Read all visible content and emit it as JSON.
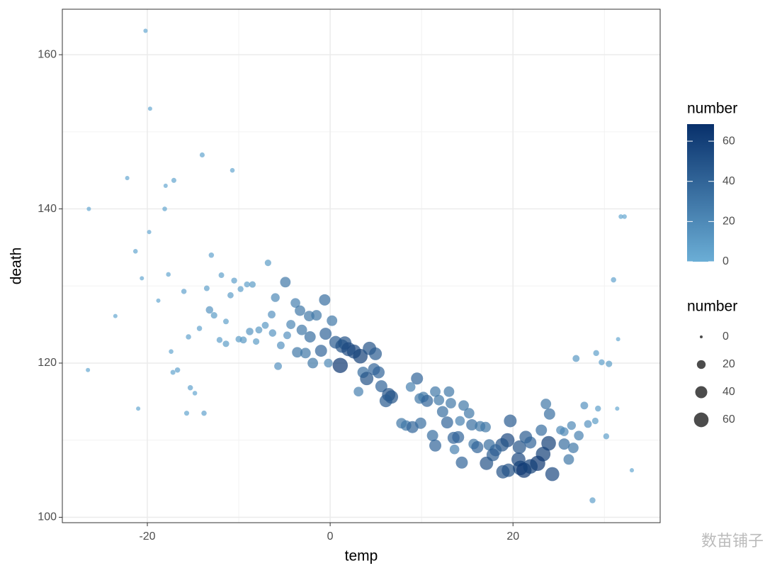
{
  "chart_data": {
    "type": "scatter",
    "x_label": "temp",
    "y_label": "death",
    "xlim": [
      -29.3,
      36.1
    ],
    "ylim": [
      99.3,
      165.9
    ],
    "xticks": [
      -20,
      0,
      20
    ],
    "yticks": [
      100,
      120,
      140,
      160
    ],
    "x_minor_ticks": [
      -10,
      10,
      30
    ],
    "y_minor_ticks": [
      110,
      130,
      150
    ],
    "grid": true,
    "color_low": "#6baed6",
    "color_high": "#08306b",
    "opacity": 0.7,
    "number_range": [
      0,
      68.5
    ],
    "color_legend_title": "number",
    "color_legend_ticks": [
      0,
      20,
      40,
      60
    ],
    "size_legend_title": "number",
    "size_legend_ticks": [
      0,
      20,
      40,
      60
    ],
    "watermark": "数苗铺子",
    "x": [
      -20.2,
      -19.7,
      -14.0,
      -10.7,
      -22.2,
      -17.1,
      -18.0,
      -26.4,
      -18.1,
      -19.8,
      -21.3,
      -13.0,
      -6.8,
      -20.6,
      -17.7,
      -11.9,
      -10.5,
      -8.5,
      -9.1,
      -13.5,
      -4.9,
      -9.8,
      -10.9,
      -16.0,
      -6.0,
      -18.8,
      -3.8,
      -13.2,
      -3.3,
      -0.6,
      -12.7,
      -23.5,
      -6.4,
      -2.3,
      -1.5,
      -11.4,
      0.2,
      -7.1,
      -4.3,
      -8.8,
      -7.8,
      -3.1,
      -14.3,
      -6.3,
      -0.5,
      -4.7,
      -15.5,
      -2.2,
      -10.0,
      -9.5,
      -12.1,
      -8.1,
      -11.4,
      0.6,
      1.6,
      1.3,
      -5.4,
      2.0,
      2.6,
      3.3,
      4.3,
      -17.4,
      -3.6,
      -2.7,
      -1.0,
      4.96,
      -1.9,
      -0.2,
      1.1,
      -5.7,
      4.8,
      5.3,
      3.6,
      4.0,
      9.5,
      -26.5,
      -16.7,
      -17.2,
      8.8,
      5.6,
      11.5,
      13.0,
      3.1,
      -15.3,
      -14.8,
      6.4,
      6.7,
      9.8,
      10.2,
      10.6,
      11.9,
      6.1,
      13.2,
      14.6,
      -21.0,
      12.3,
      -15.7,
      -13.8,
      15.2,
      23.6,
      24.0,
      27.8,
      29.3,
      31.4,
      7.8,
      8.3,
      9.0,
      9.9,
      12.8,
      14.2,
      15.5,
      16.4,
      17.0,
      19.7,
      23.1,
      25.2,
      25.6,
      26.4,
      28.2,
      29.0,
      26.9,
      29.1,
      29.7,
      30.5,
      31.0,
      31.8,
      32.2,
      31.5,
      33.0,
      30.2,
      28.7,
      11.2,
      11.5,
      13.5,
      14.0,
      13.6,
      15.7,
      16.1,
      17.4,
      19.4,
      18.8,
      18.1,
      20.7,
      21.4,
      21.9,
      23.9,
      25.6,
      26.6,
      27.2,
      17.8,
      14.4,
      17.1,
      20.6,
      23.3,
      26.1,
      22.7,
      18.9,
      19.5,
      20.8,
      21.2,
      21.9,
      24.3
    ],
    "y": [
      163.1,
      153,
      147,
      145,
      144,
      143.7,
      143,
      140,
      140,
      137,
      134.5,
      134,
      133,
      131,
      131.5,
      131.4,
      130.7,
      130.2,
      130.2,
      129.7,
      130.5,
      129.6,
      128.8,
      129.3,
      128.5,
      128.1,
      127.8,
      126.9,
      126.8,
      128.2,
      126.2,
      126.1,
      126.3,
      126.1,
      126.2,
      125.4,
      125.5,
      124.9,
      125.0,
      124.1,
      124.3,
      124.3,
      124.5,
      123.9,
      123.8,
      123.6,
      123.4,
      123.4,
      123.1,
      123.0,
      123.0,
      122.8,
      122.5,
      122.7,
      122.6,
      122.2,
      122.3,
      121.8,
      121.5,
      120.9,
      121.9,
      121.5,
      121.4,
      121.3,
      121.6,
      121.2,
      120.0,
      120.0,
      119.7,
      119.6,
      119.2,
      118.8,
      118.8,
      118.0,
      118.0,
      119.1,
      119.1,
      118.8,
      116.9,
      117.0,
      116.3,
      116.3,
      116.3,
      116.8,
      116.1,
      115.9,
      115.6,
      115.4,
      115.6,
      115.1,
      115.2,
      115.1,
      114.8,
      114.5,
      114.1,
      113.7,
      113.5,
      113.5,
      113.5,
      114.7,
      113.4,
      114.5,
      114.1,
      114.1,
      112.2,
      111.9,
      111.7,
      112.2,
      112.3,
      112.5,
      112.0,
      111.8,
      111.7,
      112.5,
      111.3,
      111.3,
      111.1,
      111.9,
      112.1,
      112.5,
      120.6,
      121.3,
      120.1,
      119.9,
      130.8,
      139.0,
      139.0,
      123.1,
      106.1,
      110.5,
      102.2,
      110.6,
      109.3,
      110.3,
      110.4,
      108.8,
      109.5,
      109.1,
      109.4,
      110.0,
      109.4,
      108.7,
      109.1,
      110.4,
      109.7,
      109.6,
      109.5,
      109.0,
      110.6,
      108.1,
      107.1,
      107.0,
      107.5,
      108.2,
      107.5,
      107.0,
      105.9,
      106.1,
      106.4,
      106.1,
      106.6,
      105.6
    ],
    "number": [
      3,
      3,
      5,
      4,
      3,
      5,
      3,
      3,
      4,
      3,
      4,
      6,
      10,
      3,
      4,
      7,
      8,
      10,
      8,
      7,
      30,
      8,
      9,
      6,
      20,
      3,
      25,
      14,
      30,
      35,
      10,
      3,
      15,
      30,
      30,
      7,
      30,
      12,
      22,
      14,
      12,
      30,
      6,
      14,
      40,
      15,
      6,
      35,
      10,
      12,
      8,
      10,
      10,
      45,
      50,
      50,
      15,
      55,
      55,
      60,
      50,
      4,
      30,
      30,
      40,
      45,
      30,
      20,
      65,
      15,
      40,
      40,
      35,
      50,
      40,
      3,
      6,
      5,
      25,
      40,
      30,
      30,
      25,
      6,
      4,
      50,
      50,
      30,
      30,
      40,
      30,
      45,
      30,
      30,
      3,
      35,
      5,
      6,
      30,
      30,
      35,
      15,
      8,
      3,
      30,
      30,
      40,
      35,
      40,
      25,
      35,
      30,
      30,
      45,
      35,
      20,
      20,
      20,
      15,
      10,
      12,
      8,
      8,
      10,
      6,
      4,
      4,
      3,
      3,
      8,
      8,
      35,
      40,
      40,
      40,
      25,
      30,
      40,
      35,
      55,
      50,
      40,
      50,
      45,
      40,
      60,
      35,
      30,
      25,
      45,
      40,
      50,
      55,
      60,
      30,
      65,
      50,
      50,
      60,
      65,
      60,
      55
    ]
  }
}
